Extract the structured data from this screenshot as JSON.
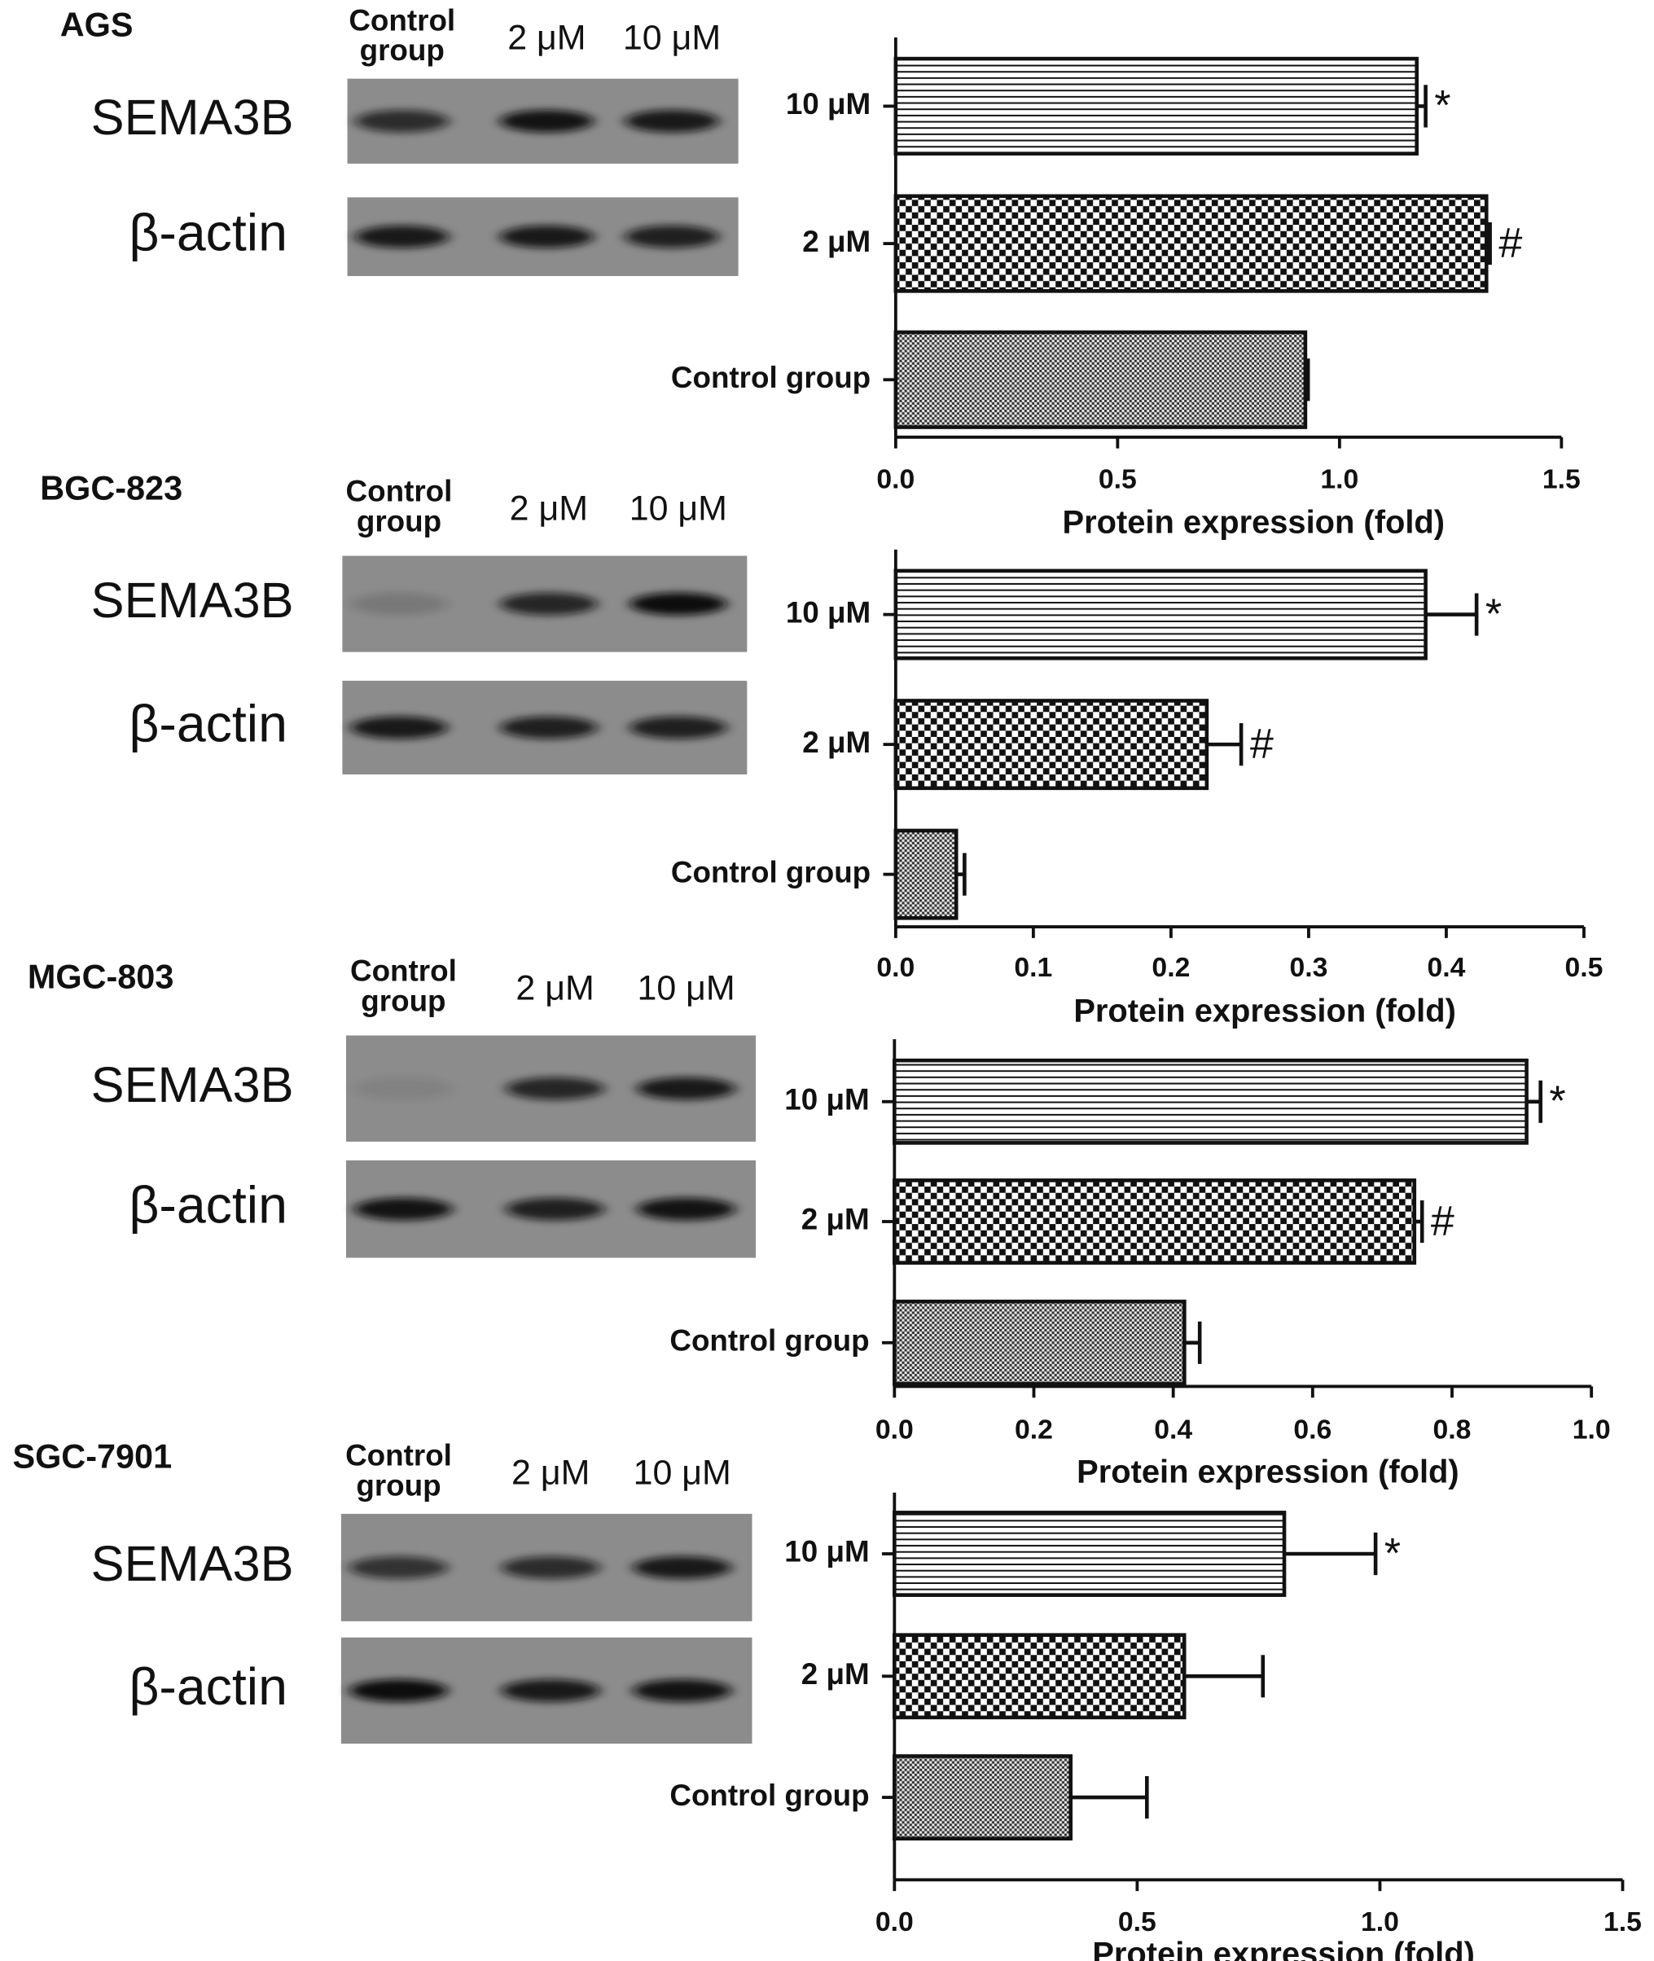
{
  "chart_data": [
    {
      "type": "bar",
      "orientation": "horizontal",
      "cell_line": "AGS",
      "lanes": [
        [
          "Control",
          "group"
        ],
        [
          "2 μM"
        ],
        [
          "10 μM"
        ]
      ],
      "blot_rows": [
        "SEMA3B",
        "β-actin"
      ],
      "categories": [
        "Control group",
        "2 μM",
        "10 μM"
      ],
      "values": [
        0.923,
        1.331,
        1.174
      ],
      "errors": [
        0.006,
        0.008,
        0.02
      ],
      "markers": [
        null,
        "#",
        "*"
      ],
      "xlabel": "Protein expression (fold)",
      "xlim": [
        0,
        1.5
      ],
      "xticks": [
        {
          "value": 0,
          "label": "0.0"
        },
        0.5,
        {
          "value": 1,
          "label": "1.0"
        },
        1.5
      ]
    },
    {
      "type": "bar",
      "orientation": "horizontal",
      "cell_line": "BGC-823",
      "lanes": [
        [
          "Control",
          "group"
        ],
        [
          "2 μM"
        ],
        [
          "10 μM"
        ]
      ],
      "blot_rows": [
        "SEMA3B",
        "β-actin"
      ],
      "categories": [
        "Control group",
        "2 μM",
        "10 μM"
      ],
      "values": [
        0.044,
        0.226,
        0.385
      ],
      "errors": [
        0.006,
        0.025,
        0.037
      ],
      "markers": [
        null,
        "#",
        "*"
      ],
      "xlabel": "Protein expression (fold)",
      "xlim": [
        0,
        0.5
      ],
      "xticks": [
        {
          "value": 0,
          "label": "0.0"
        },
        0.1,
        0.2,
        0.3,
        0.4,
        0.5
      ]
    },
    {
      "type": "bar",
      "orientation": "horizontal",
      "cell_line": "MGC-803",
      "lanes": [
        [
          "Control",
          "group"
        ],
        [
          "2 μM"
        ],
        [
          "10 μM"
        ]
      ],
      "blot_rows": [
        "SEMA3B",
        "β-actin"
      ],
      "categories": [
        "Control group",
        "2 μM",
        "10 μM"
      ],
      "values": [
        0.416,
        0.746,
        0.907
      ],
      "errors": [
        0.022,
        0.011,
        0.02
      ],
      "markers": [
        null,
        "#",
        "*"
      ],
      "xlabel": "Protein expression (fold)",
      "xlim": [
        0,
        1
      ],
      "xticks": [
        {
          "value": 0,
          "label": "0.0"
        },
        0.2,
        0.4,
        0.6,
        0.8,
        {
          "value": 1,
          "label": "1.0"
        }
      ]
    },
    {
      "type": "bar",
      "orientation": "horizontal",
      "cell_line": "SGC-7901",
      "lanes": [
        [
          "Control",
          "group"
        ],
        [
          "2 μM"
        ],
        [
          "10 μM"
        ]
      ],
      "blot_rows": [
        "SEMA3B",
        "β-actin"
      ],
      "categories": [
        "Control group",
        "2 μM",
        "10 μM"
      ],
      "values": [
        0.363,
        0.597,
        0.803
      ],
      "errors": [
        0.157,
        0.162,
        0.188
      ],
      "markers": [
        null,
        null,
        "*"
      ],
      "xlabel": "Protein expression (fold)",
      "xlim": [
        0,
        1.5
      ],
      "xticks": [
        {
          "value": 0,
          "label": "0.0"
        },
        0.5,
        {
          "value": 1,
          "label": "1.0"
        },
        1.5
      ]
    }
  ]
}
